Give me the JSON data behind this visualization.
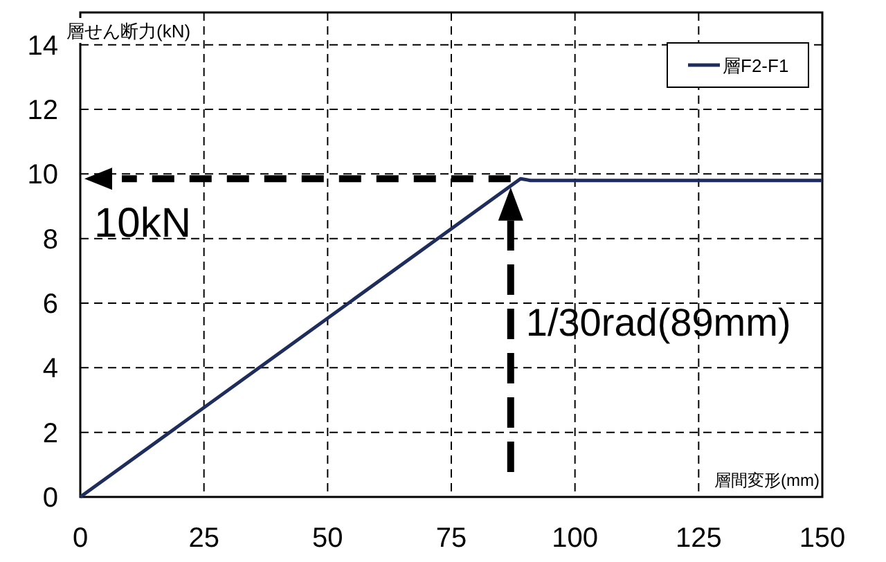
{
  "chart_data": {
    "type": "line",
    "xlabel": "層間変形(mm)",
    "ylabel": "層せん断力(kN)",
    "x": [
      0,
      89,
      91,
      150
    ],
    "series": [
      {
        "name": "層F2-F1",
        "color": "#1f2d5c",
        "values": [
          0,
          9.85,
          9.8,
          9.8
        ]
      }
    ],
    "xlim": [
      0,
      150
    ],
    "xticks": [
      0,
      25,
      50,
      75,
      100,
      125,
      150
    ],
    "ylim": [
      0,
      15
    ],
    "yticks": [
      0,
      2,
      4,
      6,
      8,
      10,
      12,
      14
    ],
    "grid": true,
    "legend": "top right",
    "marker": "none",
    "line_style": "solid",
    "annotations": [
      "10kN",
      "1/30rad(89mm)"
    ]
  }
}
